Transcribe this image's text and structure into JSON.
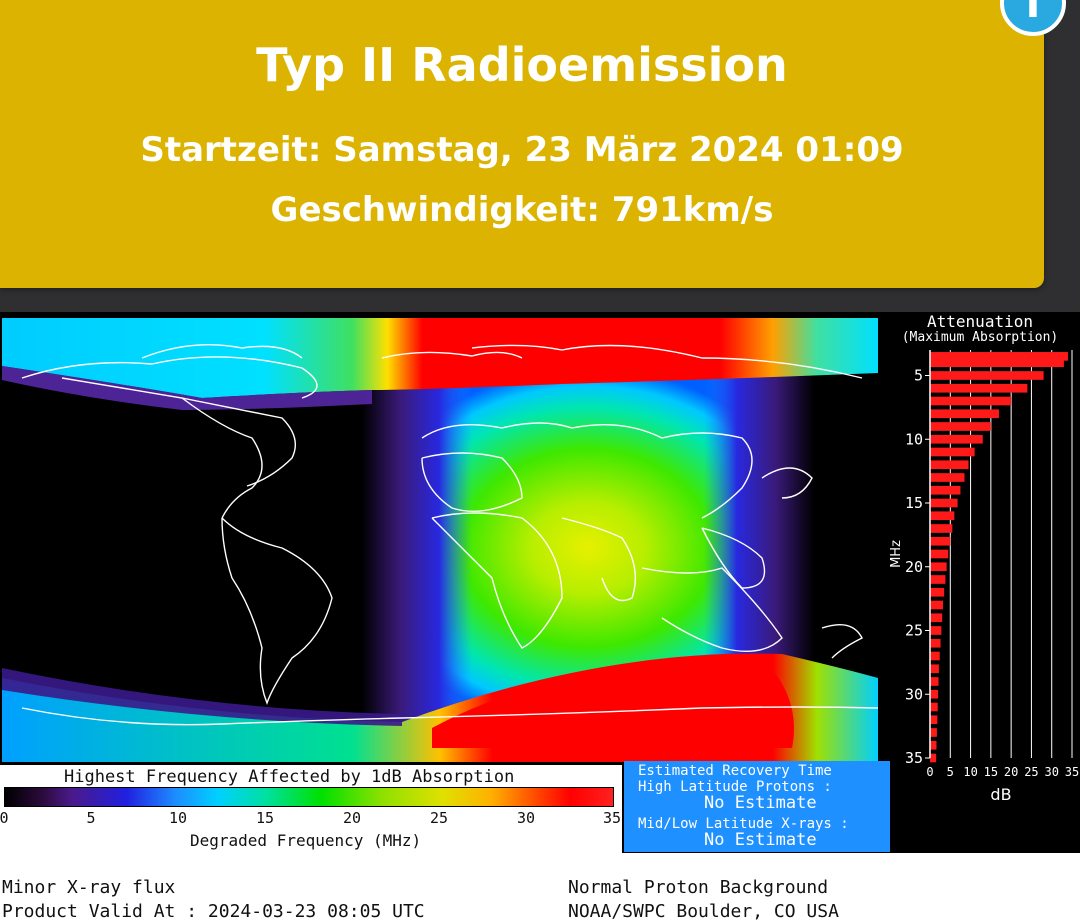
{
  "alert": {
    "title": "Typ II Radioemission",
    "start_time": "Startzeit: Samstag, 23 März 2024 01:09",
    "speed": "Geschwindigkeit: 791km/s",
    "badge_icon": "info-icon",
    "background": "#dbb300"
  },
  "product": {
    "attenuation_title": "Attenuation",
    "attenuation_subtitle": "(Maximum Absorption)",
    "legend_title": "Highest Frequency Affected by 1dB Absorption",
    "colorbar_ticks": [
      "0",
      "5",
      "10",
      "15",
      "20",
      "25",
      "30",
      "35"
    ],
    "colorbar_xlabel": "Degraded Frequency (MHz)",
    "recovery": {
      "title": "Estimated Recovery Time",
      "high_lat_label": "High Latitude Protons :",
      "high_lat_value": "No Estimate",
      "mid_lat_label": "Mid/Low Latitude X-rays :",
      "mid_lat_value": "No Estimate"
    },
    "footer": {
      "xray": "Minor X-ray flux",
      "valid": "Product Valid At : 2024-03-23 08:05 UTC",
      "proton": "Normal Proton Background",
      "agency": "NOAA/SWPC Boulder, CO USA"
    }
  },
  "chart_data": {
    "type": "bar",
    "orientation": "horizontal",
    "title": "Attenuation",
    "subtitle": "(Maximum Absorption)",
    "ylabel": "MHz",
    "xlabel": "dB",
    "ylim": [
      35,
      3
    ],
    "xlim": [
      0,
      35
    ],
    "yticks": [
      "5",
      "10",
      "15",
      "20",
      "25",
      "30",
      "35"
    ],
    "xticks": [
      "0",
      "5",
      "10",
      "15",
      "20",
      "25",
      "30",
      "35"
    ],
    "bar_color": "#ff1a1a",
    "frequencies": [
      3.5,
      4,
      5,
      6,
      7,
      8,
      9,
      10,
      11,
      12,
      13,
      14,
      15,
      16,
      17,
      18,
      19,
      20,
      21,
      22,
      23,
      24,
      25,
      26,
      27,
      28,
      29,
      30,
      31,
      32,
      33,
      34,
      35
    ],
    "values": [
      34,
      33,
      28,
      24,
      20,
      17,
      15,
      13,
      11,
      9.5,
      8.5,
      7.5,
      6.8,
      6,
      5.5,
      5,
      4.5,
      4.1,
      3.8,
      3.5,
      3.2,
      3.0,
      2.8,
      2.6,
      2.4,
      2.2,
      2.1,
      2.0,
      1.9,
      1.8,
      1.7,
      1.6,
      1.5
    ]
  }
}
